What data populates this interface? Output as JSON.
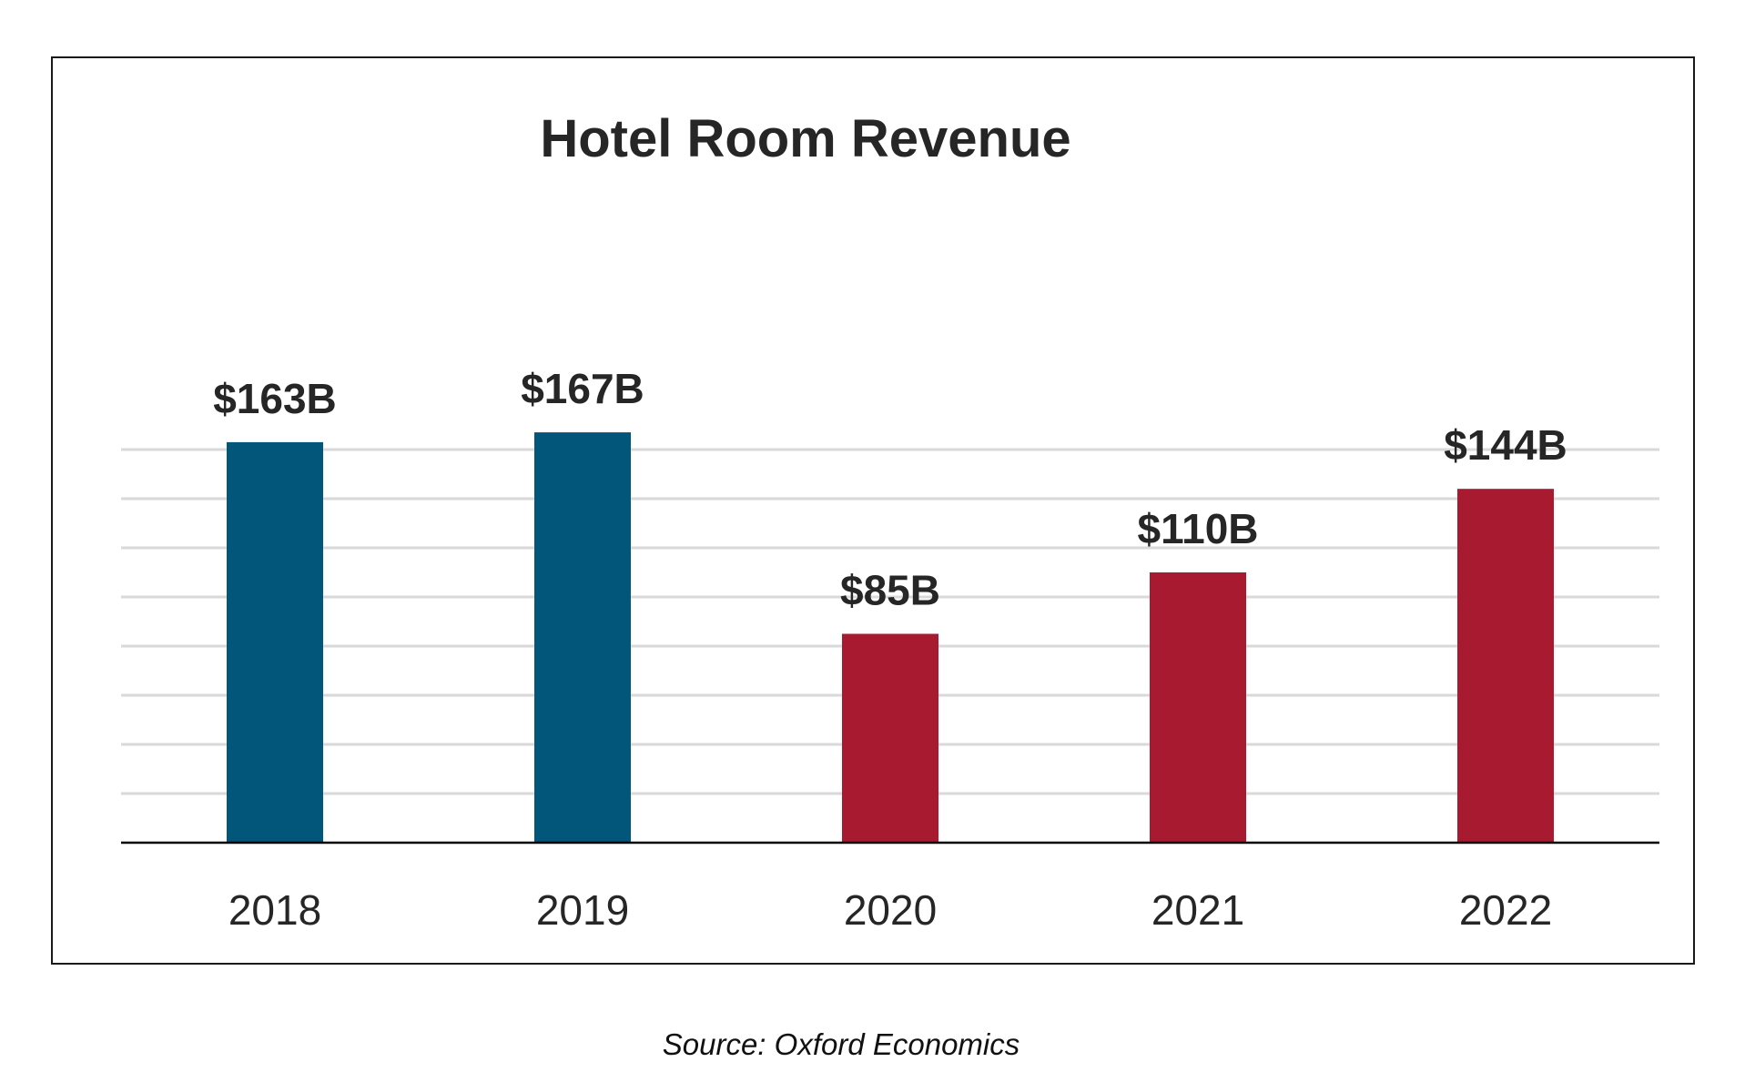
{
  "chart_data": {
    "type": "bar",
    "title": "Hotel Room Revenue",
    "categories": [
      "2018",
      "2019",
      "2020",
      "2021",
      "2022"
    ],
    "values": [
      163,
      167,
      85,
      110,
      144
    ],
    "data_labels": [
      "$163B",
      "$167B",
      "$85B",
      "$110B",
      "$144B"
    ],
    "bar_colors": [
      "#02567a",
      "#02567a",
      "#a81a30",
      "#a81a30",
      "#a81a30"
    ],
    "ylim": [
      0,
      180
    ],
    "grid": true,
    "grid_step": 20,
    "xlabel": "",
    "ylabel": "",
    "source": "Source: Oxford Economics"
  },
  "colors": {
    "pre_pandemic": "#02567a",
    "post_pandemic": "#a81a30",
    "gridline": "#d9d9d9",
    "axis": "#000000",
    "text": "#262626"
  }
}
